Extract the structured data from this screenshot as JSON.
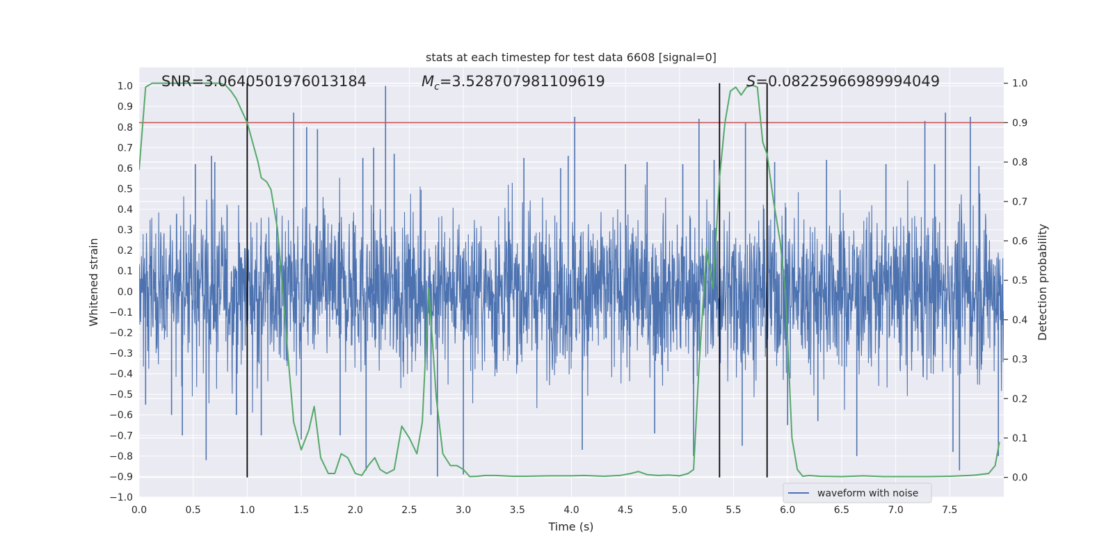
{
  "chart_data": {
    "type": "line",
    "title": "stats at each timestep for test data 6608 [signal=0]",
    "xlabel": "Time (s)",
    "ylabel": "Whitened strain",
    "y2label": "Detection probability",
    "xlim": [
      0.0,
      8.0
    ],
    "ylim": [
      -1.0,
      1.09
    ],
    "y2lim": [
      -0.05,
      1.04
    ],
    "xticks": [
      "0.0",
      "0.5",
      "1.0",
      "1.5",
      "2.0",
      "2.5",
      "3.0",
      "3.5",
      "4.0",
      "4.5",
      "5.0",
      "5.5",
      "6.0",
      "6.5",
      "7.0",
      "7.5"
    ],
    "yticks": [
      "−1.0",
      "−0.9",
      "−0.8",
      "−0.7",
      "−0.6",
      "−0.5",
      "−0.4",
      "−0.3",
      "−0.2",
      "−0.1",
      "0.0",
      "0.1",
      "0.2",
      "0.3",
      "0.4",
      "0.5",
      "0.6",
      "0.7",
      "0.8",
      "0.9",
      "1.0"
    ],
    "y2ticks": [
      "0.0",
      "0.1",
      "0.2",
      "0.3",
      "0.4",
      "0.5",
      "0.6",
      "0.7",
      "0.8",
      "0.9",
      "1.0"
    ],
    "grid": true,
    "legend_position": "lower-right",
    "annotations": {
      "snr": "SNR=3.0640501976013184",
      "mc_symbol": "M",
      "mc_sub": "c",
      "mc_value": "=3.528707981109619",
      "s_symbol": "S",
      "s_value": "=0.08225966989994049"
    },
    "threshold": 0.9,
    "vertical_markers": [
      1.0,
      5.37,
      5.81
    ],
    "colors": {
      "waveform": "#4c72b0",
      "probability": "#55a868",
      "threshold": "#c44e52",
      "markers": "#000000",
      "plot_bg": "#eaeaf2",
      "grid": "#ffffff"
    },
    "series": [
      {
        "name": "waveform with noise",
        "axis": "left",
        "description_range": [
          -0.9,
          1.0
        ],
        "spikes": [
          {
            "x": 0.06,
            "y": -0.55
          },
          {
            "x": 0.3,
            "y": -0.6
          },
          {
            "x": 0.4,
            "y": -0.7
          },
          {
            "x": 0.52,
            "y": 0.62
          },
          {
            "x": 0.62,
            "y": -0.82
          },
          {
            "x": 0.67,
            "y": 0.66
          },
          {
            "x": 0.7,
            "y": 0.63
          },
          {
            "x": 0.9,
            "y": -0.6
          },
          {
            "x": 1.13,
            "y": -0.7
          },
          {
            "x": 1.43,
            "y": 0.87
          },
          {
            "x": 1.5,
            "y": -0.72
          },
          {
            "x": 1.55,
            "y": 0.8
          },
          {
            "x": 1.65,
            "y": 0.79
          },
          {
            "x": 1.86,
            "y": -0.7
          },
          {
            "x": 2.07,
            "y": 0.65
          },
          {
            "x": 2.1,
            "y": -0.87
          },
          {
            "x": 2.17,
            "y": 0.7
          },
          {
            "x": 2.28,
            "y": 1.0
          },
          {
            "x": 2.36,
            "y": 0.67
          },
          {
            "x": 2.7,
            "y": -0.6
          },
          {
            "x": 2.76,
            "y": -0.9
          },
          {
            "x": 3.0,
            "y": -0.89
          },
          {
            "x": 3.56,
            "y": 0.65
          },
          {
            "x": 3.9,
            "y": 0.6
          },
          {
            "x": 3.97,
            "y": 0.66
          },
          {
            "x": 4.03,
            "y": 0.85
          },
          {
            "x": 4.1,
            "y": -0.77
          },
          {
            "x": 4.5,
            "y": 0.62
          },
          {
            "x": 4.7,
            "y": 0.63
          },
          {
            "x": 4.77,
            "y": -0.69
          },
          {
            "x": 5.03,
            "y": 0.62
          },
          {
            "x": 5.13,
            "y": -0.8
          },
          {
            "x": 5.18,
            "y": 0.84
          },
          {
            "x": 5.32,
            "y": 0.64
          },
          {
            "x": 5.58,
            "y": -0.75
          },
          {
            "x": 5.61,
            "y": 0.82
          },
          {
            "x": 5.88,
            "y": 0.63
          },
          {
            "x": 6.0,
            "y": -0.65
          },
          {
            "x": 6.28,
            "y": -0.63
          },
          {
            "x": 6.36,
            "y": 0.64
          },
          {
            "x": 6.64,
            "y": -0.8
          },
          {
            "x": 6.91,
            "y": 0.62
          },
          {
            "x": 7.27,
            "y": 0.83
          },
          {
            "x": 7.36,
            "y": 0.62
          },
          {
            "x": 7.46,
            "y": 0.87
          },
          {
            "x": 7.53,
            "y": -0.78
          },
          {
            "x": 7.59,
            "y": -0.87
          },
          {
            "x": 7.69,
            "y": 0.85
          },
          {
            "x": 7.77,
            "y": 0.61
          },
          {
            "x": 7.95,
            "y": -0.8
          }
        ]
      },
      {
        "name": "detection probability",
        "axis": "right",
        "x": [
          0.0,
          0.06,
          0.12,
          0.2,
          0.3,
          0.4,
          0.5,
          0.6,
          0.7,
          0.75,
          0.8,
          0.85,
          0.9,
          0.95,
          1.0,
          1.03,
          1.06,
          1.1,
          1.13,
          1.18,
          1.22,
          1.28,
          1.33,
          1.38,
          1.43,
          1.5,
          1.57,
          1.62,
          1.68,
          1.75,
          1.81,
          1.87,
          1.93,
          2.0,
          2.06,
          2.12,
          2.18,
          2.23,
          2.29,
          2.36,
          2.43,
          2.5,
          2.57,
          2.62,
          2.68,
          2.75,
          2.81,
          2.88,
          2.94,
          3.0,
          3.06,
          3.13,
          3.2,
          3.3,
          3.45,
          3.6,
          3.8,
          4.0,
          4.12,
          4.3,
          4.45,
          4.55,
          4.62,
          4.7,
          4.8,
          4.9,
          5.0,
          5.08,
          5.13,
          5.18,
          5.25,
          5.31,
          5.37,
          5.42,
          5.47,
          5.52,
          5.57,
          5.62,
          5.67,
          5.72,
          5.77,
          5.81,
          5.87,
          5.93,
          5.98,
          6.04,
          6.09,
          6.14,
          6.2,
          6.3,
          6.5,
          6.7,
          6.9,
          7.1,
          7.3,
          7.5,
          7.6,
          7.68,
          7.74,
          7.8,
          7.86,
          7.92,
          7.96
        ],
        "values": [
          0.78,
          0.99,
          1.0,
          1.0,
          1.0,
          1.0,
          1.0,
          1.0,
          1.0,
          1.0,
          0.995,
          0.98,
          0.96,
          0.93,
          0.9,
          0.87,
          0.84,
          0.8,
          0.76,
          0.75,
          0.73,
          0.63,
          0.47,
          0.3,
          0.14,
          0.07,
          0.12,
          0.18,
          0.05,
          0.01,
          0.01,
          0.06,
          0.05,
          0.01,
          0.005,
          0.03,
          0.05,
          0.02,
          0.01,
          0.02,
          0.13,
          0.1,
          0.06,
          0.14,
          0.48,
          0.2,
          0.06,
          0.03,
          0.03,
          0.02,
          0.002,
          0.003,
          0.005,
          0.005,
          0.003,
          0.003,
          0.004,
          0.004,
          0.005,
          0.003,
          0.005,
          0.01,
          0.015,
          0.007,
          0.005,
          0.006,
          0.004,
          0.01,
          0.02,
          0.28,
          0.58,
          0.48,
          0.76,
          0.9,
          0.98,
          0.99,
          0.97,
          0.99,
          0.995,
          0.99,
          0.85,
          0.82,
          0.7,
          0.6,
          0.47,
          0.1,
          0.02,
          0.003,
          0.005,
          0.003,
          0.002,
          0.004,
          0.002,
          0.002,
          0.002,
          0.003,
          0.004,
          0.005,
          0.006,
          0.008,
          0.01,
          0.03,
          0.09
        ]
      }
    ]
  }
}
